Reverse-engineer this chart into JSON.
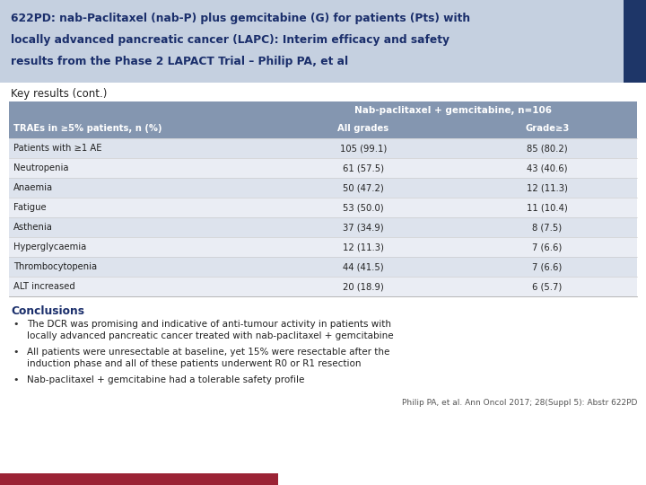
{
  "title_line1": "622PD: nab-Paclitaxel (nab-P) plus gemcitabine (G) for patients (Pts) with",
  "title_line2": "locally advanced pancreatic cancer (LAPC): Interim efficacy and safety",
  "title_line3": "results from the Phase 2 LAPACT Trial – Philip PA, et al",
  "title_bg": "#c5d0e0",
  "title_color": "#1a2e6b",
  "title_stripe_color": "#1e3668",
  "section_label": "Key results (cont.)",
  "table_header_bg": "#8496b0",
  "table_header_text": "#ffffff",
  "table_row_bg_even": "#dde3ed",
  "table_row_bg_odd": "#eaedf4",
  "col_header": "TRAEs in ≥5% patients, n (%)",
  "merged_header": "Nab-paclitaxel + gemcitabine, n=106",
  "col2_header": "All grades",
  "col3_header": "Grade≥3",
  "rows": [
    [
      "Patients with ≥1 AE",
      "105 (99.1)",
      "85 (80.2)"
    ],
    [
      "Neutropenia",
      "61 (57.5)",
      "43 (40.6)"
    ],
    [
      "Anaemia",
      "50 (47.2)",
      "12 (11.3)"
    ],
    [
      "Fatigue",
      "53 (50.0)",
      "11 (10.4)"
    ],
    [
      "Asthenia",
      "37 (34.9)",
      "8 (7.5)"
    ],
    [
      "Hyperglycaemia",
      "12 (11.3)",
      "7 (6.6)"
    ],
    [
      "Thrombocytopenia",
      "44 (41.5)",
      "7 (6.6)"
    ],
    [
      "ALT increased",
      "20 (18.9)",
      "6 (5.7)"
    ]
  ],
  "conclusions_title": "Conclusions",
  "conclusions_color": "#1a2e6b",
  "bullet_points": [
    [
      "The DCR was promising and indicative of anti-tumour activity in patients with",
      "locally advanced pancreatic cancer treated with nab-paclitaxel + gemcitabine"
    ],
    [
      "All patients were unresectable at baseline, yet 15% were resectable after the",
      "induction phase and all of these patients underwent R0 or R1 resection"
    ],
    [
      "Nab-paclitaxel + gemcitabine had a tolerable safety profile"
    ]
  ],
  "citation": "Philip PA, et al. Ann Oncol 2017; 28(Suppl 5): Abstr 622PD",
  "footer_bar_color": "#9b2335",
  "bg_color": "#ffffff"
}
